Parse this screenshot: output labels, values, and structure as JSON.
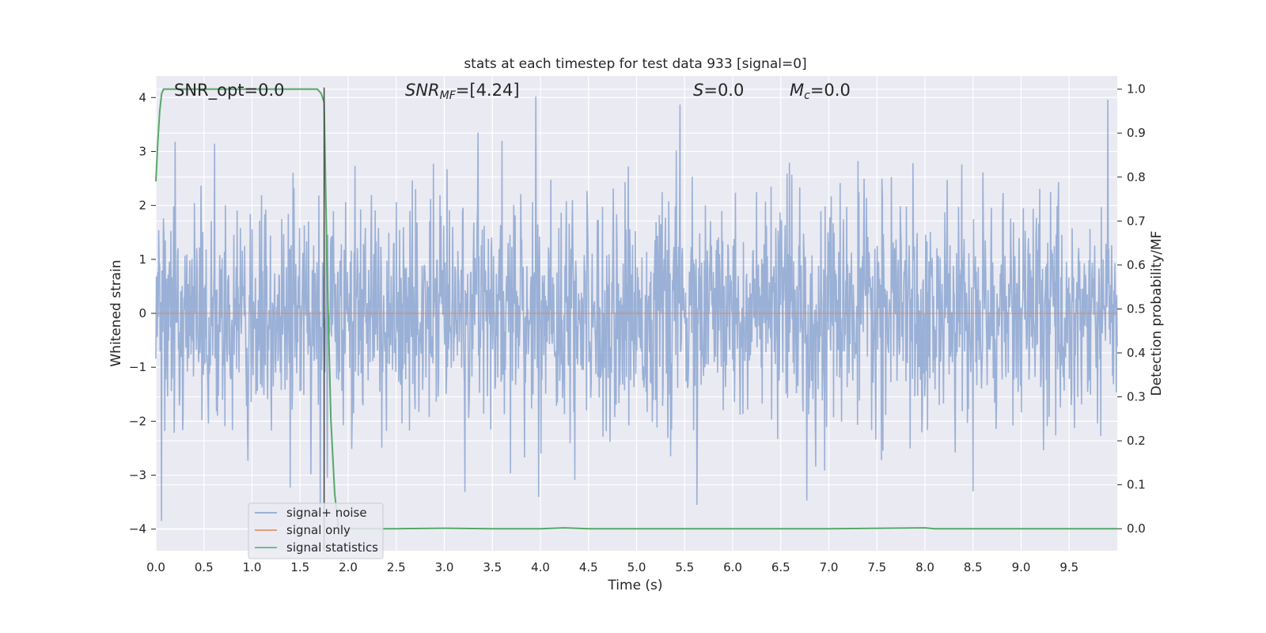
{
  "chart_data": {
    "type": "line",
    "title": "stats at each timestep for test data 933 [signal=0]",
    "xlabel": "Time (s)",
    "ylabel": "Whitened strain",
    "y2label": "Detection probability/MF",
    "xlim": [
      0,
      10
    ],
    "ylim": [
      -4.4,
      4.4
    ],
    "y2lim": [
      -0.05,
      1.03
    ],
    "xticks": [
      0.0,
      0.5,
      1.0,
      1.5,
      2.0,
      2.5,
      3.0,
      3.5,
      4.0,
      4.5,
      5.0,
      5.5,
      6.0,
      6.5,
      7.0,
      7.5,
      8.0,
      8.5,
      9.0,
      9.5
    ],
    "xtick_labels": [
      "0.0",
      "0.5",
      "1.0",
      "1.5",
      "2.0",
      "2.5",
      "3.0",
      "3.5",
      "4.0",
      "4.5",
      "5.0",
      "5.5",
      "6.0",
      "6.5",
      "7.0",
      "7.5",
      "8.0",
      "8.5",
      "9.0",
      "9.5"
    ],
    "yticks": [
      4,
      3,
      2,
      1,
      0,
      -1,
      -2,
      -3,
      -4
    ],
    "ytick_labels": [
      "4",
      "3",
      "2",
      "1",
      "0",
      "−1",
      "−2",
      "−3",
      "−4"
    ],
    "y2ticks": [
      1.0,
      0.9,
      0.8,
      0.7,
      0.6,
      0.5,
      0.4,
      0.3,
      0.2,
      0.1,
      0.0
    ],
    "y2tick_labels": [
      "1.0",
      "0.9",
      "0.8",
      "0.7",
      "0.6",
      "0.5",
      "0.4",
      "0.3",
      "0.2",
      "0.1",
      "0.0"
    ],
    "grid": true,
    "legend_position": "lower-left",
    "annotations": {
      "snr_opt": "SNR_opt=0.0",
      "snr_mf_sym": "SNR",
      "snr_mf_sub": "MF",
      "snr_mf_val": "=[4.24]",
      "s_sym": "S",
      "s_val": "=0.0",
      "mc_sym": "M",
      "mc_sub": "c",
      "mc_val": "=0.0"
    },
    "vertical_marker_x": 1.75,
    "series": [
      {
        "name": "signal+ noise",
        "color": "#7f9ccc",
        "noise": {
          "n_samples": 2048,
          "typical_envelope": [
            -1.5,
            1.6
          ],
          "extremes": [
            -3.85,
            4.02
          ],
          "peaks": [
            {
              "x": 0.2,
              "y": 3.18
            },
            {
              "x": 3.35,
              "y": 3.35
            },
            {
              "x": 3.6,
              "y": 3.2
            },
            {
              "x": 3.95,
              "y": 4.02
            },
            {
              "x": 5.45,
              "y": 3.87
            },
            {
              "x": 9.9,
              "y": 3.96
            },
            {
              "x": 0.06,
              "y": -3.85
            },
            {
              "x": 3.98,
              "y": -3.4
            },
            {
              "x": 5.63,
              "y": -3.55
            },
            {
              "x": 6.77,
              "y": -3.47
            },
            {
              "x": 8.5,
              "y": -3.3
            }
          ]
        }
      },
      {
        "name": "signal only",
        "color": "#dd8452",
        "values_note": ""
      },
      {
        "name": "signal statistics",
        "color": "#55a868",
        "axis": "right",
        "x": [
          0.0,
          0.02,
          0.04,
          0.06,
          0.08,
          0.1,
          0.2,
          0.5,
          1.0,
          1.5,
          1.6,
          1.68,
          1.72,
          1.75,
          1.78,
          1.82,
          1.86,
          1.9,
          2.0,
          2.5,
          3.0,
          3.5,
          4.0,
          4.25,
          4.5,
          5.0,
          6.0,
          7.0,
          8.0,
          8.1,
          9.0,
          10.0
        ],
        "values": [
          0.79,
          0.88,
          0.95,
          0.99,
          1.0,
          1.0,
          1.0,
          1.0,
          1.0,
          1.0,
          1.0,
          1.0,
          0.99,
          0.97,
          0.6,
          0.25,
          0.08,
          0.0,
          0.0,
          0.0,
          0.001,
          0.0,
          0.0,
          0.002,
          0.0,
          0.0,
          0.0,
          0.0,
          0.002,
          0.0,
          0.0,
          0.0
        ]
      }
    ]
  }
}
